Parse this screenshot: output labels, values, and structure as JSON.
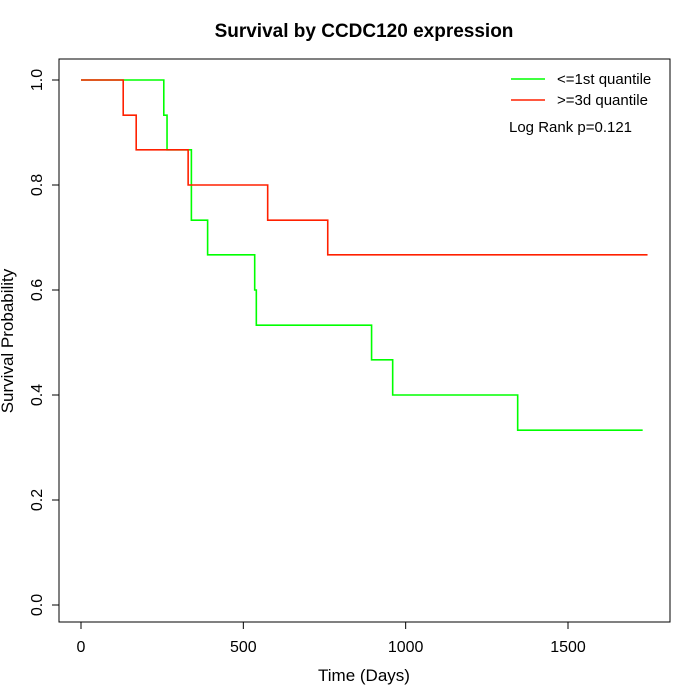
{
  "chart_data": {
    "type": "line",
    "step": true,
    "title": "Survival by CCDC120 expression",
    "xlabel": "Time (Days)",
    "ylabel": "Survival Probability",
    "xlim": [
      0,
      1800
    ],
    "ylim": [
      0,
      1.0
    ],
    "xticks": [
      0,
      500,
      1000,
      1500
    ],
    "yticks": [
      0.0,
      0.2,
      0.4,
      0.6,
      0.8,
      1.0
    ],
    "xtick_labels": [
      "0",
      "500",
      "1000",
      "1500"
    ],
    "ytick_labels": [
      "0.0",
      "0.2",
      "0.4",
      "0.6",
      "0.8",
      "1.0"
    ],
    "grid": false,
    "legend_position": "top-right",
    "annotation": "Log Rank p=0.121",
    "series": [
      {
        "name": "<=1st quantile",
        "color": "#00ff00",
        "x": [
          0,
          255,
          265,
          340,
          390,
          535,
          540,
          895,
          960,
          1345,
          1730
        ],
        "y": [
          1.0,
          0.933,
          0.867,
          0.733,
          0.667,
          0.6,
          0.533,
          0.467,
          0.4,
          0.333,
          0.333
        ]
      },
      {
        "name": ">=3d quantile",
        "color": "#ff2000",
        "x": [
          0,
          130,
          170,
          330,
          575,
          760,
          1745
        ],
        "y": [
          1.0,
          0.933,
          0.867,
          0.8,
          0.733,
          0.667,
          0.667
        ]
      }
    ]
  }
}
